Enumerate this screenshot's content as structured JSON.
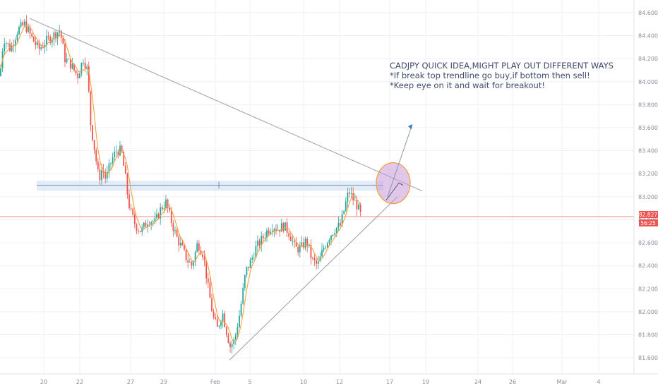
{
  "chart_data": {
    "type": "candlestick",
    "symbol_note": "CADJPY",
    "y_axis": {
      "position": "right",
      "ticks": [
        81.6,
        81.8,
        82.0,
        82.2,
        82.4,
        82.6,
        82.8,
        83.0,
        83.2,
        83.4,
        83.6,
        83.8,
        84.0,
        84.2,
        84.4,
        84.6
      ],
      "tick_labels": [
        "81.600",
        "81.800",
        "82.000",
        "82.200",
        "82.400",
        "82.600",
        "82.800",
        "83.000",
        "83.200",
        "83.400",
        "83.600",
        "83.800",
        "84.000",
        "84.200",
        "84.400",
        "84.600"
      ],
      "range": [
        81.46,
        84.71
      ]
    },
    "x_axis": {
      "tick_labels": [
        "20",
        "22",
        "27",
        "29",
        "Feb",
        "5",
        "10",
        "12",
        "17",
        "19",
        "24",
        "26",
        "Mar",
        "4"
      ]
    },
    "current_price_label": "82.827",
    "current_price": 82.827,
    "countdown_label": "56:25",
    "price_path": [
      [
        0,
        84.05
      ],
      [
        5,
        84.38
      ],
      [
        15,
        84.28
      ],
      [
        25,
        84.45
      ],
      [
        35,
        84.5
      ],
      [
        45,
        84.38
      ],
      [
        55,
        84.28
      ],
      [
        65,
        84.35
      ],
      [
        75,
        84.4
      ],
      [
        85,
        84.45
      ],
      [
        92,
        84.2
      ],
      [
        100,
        84.15
      ],
      [
        110,
        84.05
      ],
      [
        118,
        84.2
      ],
      [
        124,
        84.1
      ],
      [
        128,
        83.65
      ],
      [
        133,
        83.45
      ],
      [
        140,
        83.15
      ],
      [
        145,
        83.25
      ],
      [
        150,
        83.15
      ],
      [
        158,
        83.32
      ],
      [
        165,
        83.4
      ],
      [
        172,
        83.4
      ],
      [
        178,
        83.15
      ],
      [
        182,
        82.95
      ],
      [
        186,
        82.85
      ],
      [
        192,
        82.75
      ],
      [
        200,
        82.7
      ],
      [
        210,
        82.8
      ],
      [
        220,
        82.78
      ],
      [
        228,
        82.9
      ],
      [
        235,
        82.95
      ],
      [
        242,
        82.8
      ],
      [
        250,
        82.65
      ],
      [
        258,
        82.55
      ],
      [
        265,
        82.45
      ],
      [
        272,
        82.4
      ],
      [
        280,
        82.6
      ],
      [
        288,
        82.5
      ],
      [
        295,
        82.2
      ],
      [
        302,
        81.95
      ],
      [
        308,
        81.85
      ],
      [
        315,
        82.0
      ],
      [
        320,
        81.85
      ],
      [
        326,
        81.7
      ],
      [
        332,
        81.75
      ],
      [
        340,
        82.0
      ],
      [
        348,
        82.35
      ],
      [
        356,
        82.45
      ],
      [
        362,
        82.55
      ],
      [
        370,
        82.62
      ],
      [
        378,
        82.7
      ],
      [
        386,
        82.75
      ],
      [
        394,
        82.72
      ],
      [
        402,
        82.75
      ],
      [
        410,
        82.68
      ],
      [
        418,
        82.55
      ],
      [
        426,
        82.55
      ],
      [
        434,
        82.62
      ],
      [
        442,
        82.45
      ],
      [
        450,
        82.4
      ],
      [
        458,
        82.55
      ],
      [
        466,
        82.65
      ],
      [
        474,
        82.72
      ],
      [
        482,
        82.75
      ],
      [
        488,
        82.9
      ],
      [
        494,
        83.05
      ],
      [
        500,
        82.98
      ],
      [
        506,
        82.92
      ],
      [
        512,
        82.82
      ]
    ],
    "trendlines": [
      {
        "from": [
          42,
          84.55
        ],
        "to": [
          598,
          83.05
        ],
        "color": "#9a9ea8"
      },
      {
        "from": [
          325,
          81.58
        ],
        "to": [
          563,
          83.0
        ],
        "color": "#9a9ea8"
      }
    ],
    "horizontal_zone": {
      "x_from": 52,
      "x_to": 543,
      "price_top": 83.12,
      "price_bottom": 83.07,
      "center": 83.1
    },
    "current_price_line": {
      "price": 82.827,
      "color": "#f0837e"
    },
    "highlight_circle": {
      "cx": 557,
      "cy_price": 83.1,
      "color": "#c89bd9",
      "stroke": "#f29c38"
    },
    "arrow": {
      "from": [
        549,
        83.0
      ],
      "to": [
        584,
        83.63
      ],
      "color": "#3a78c2"
    },
    "annotation": {
      "lines": [
        "CADJPY QUICK IDEA,MIGHT PLAY OUT DIFFERENT WAYS",
        "*If break top trendline go buy,if bottom then sell!",
        "*Keep eye on it and wait for breakout!"
      ]
    }
  },
  "colors": {
    "grid": "#eef0f4",
    "up": "#26a69a",
    "down": "#ef5350",
    "ma": "#f5a03a",
    "axis_text": "#8a8e99",
    "price_badge": "#ef5350"
  }
}
